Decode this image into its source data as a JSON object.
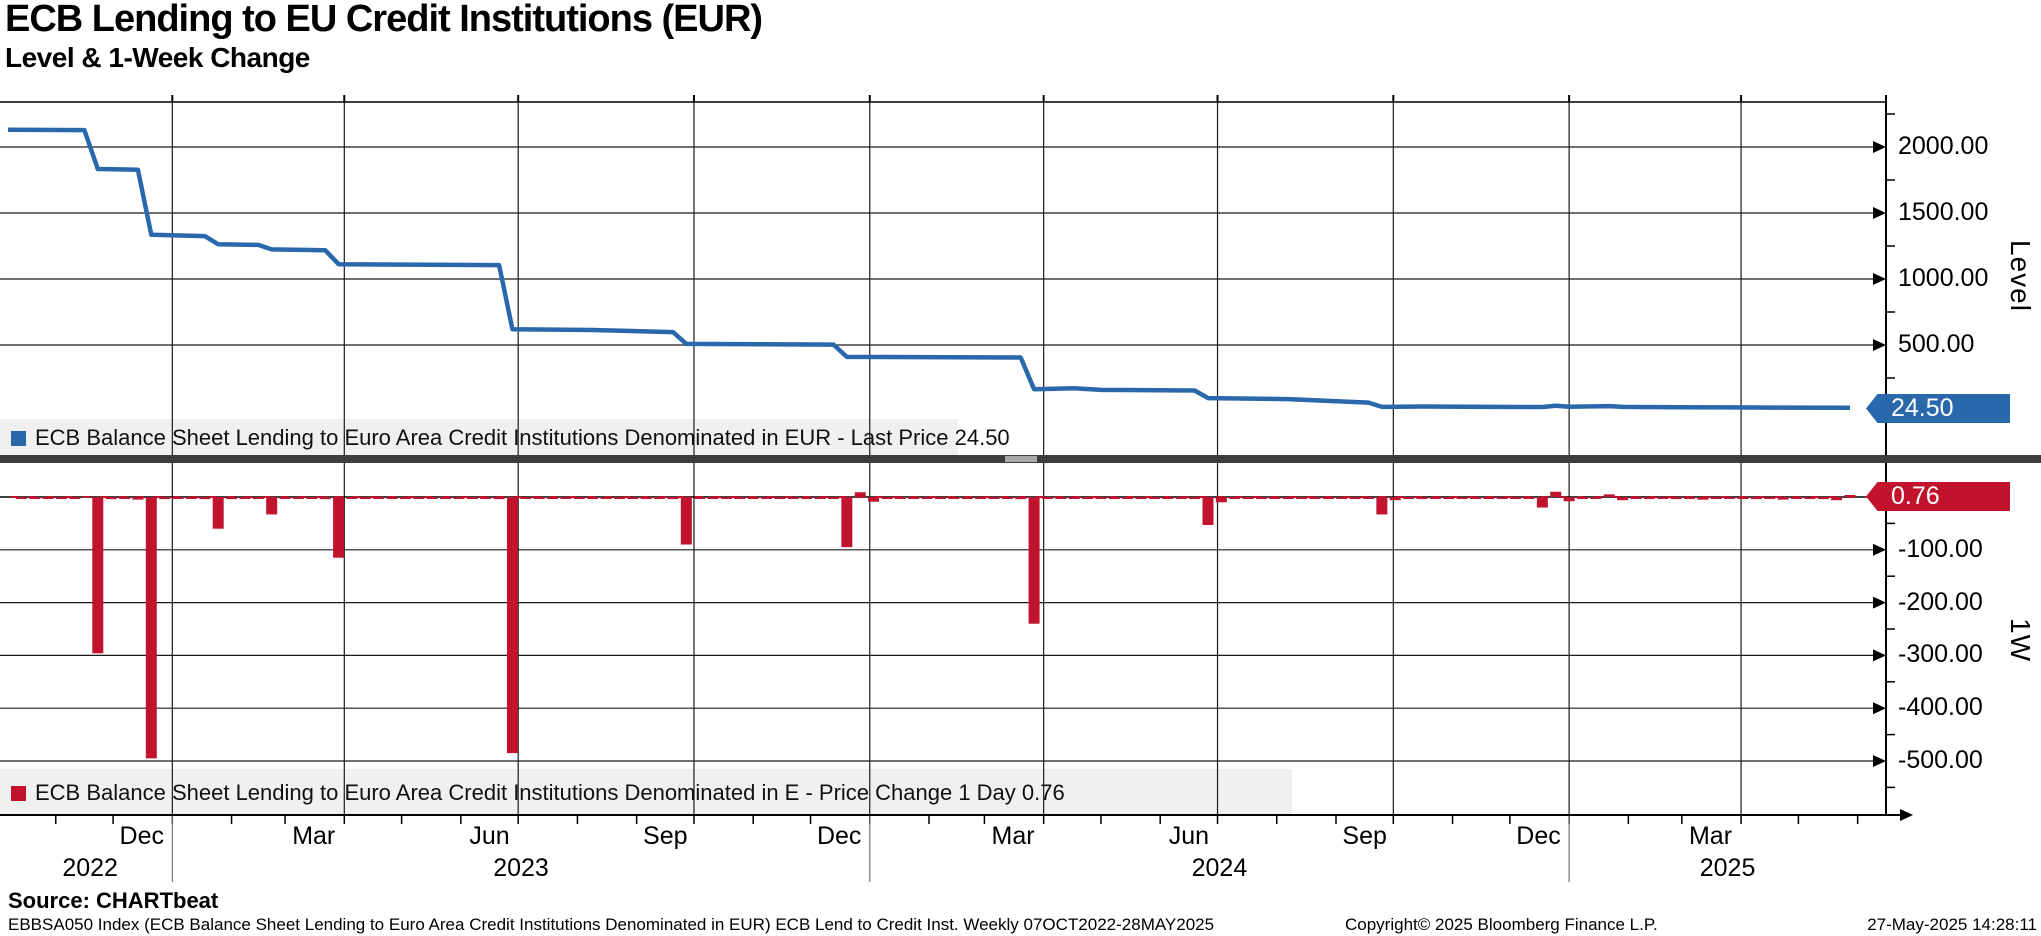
{
  "title": "ECB Lending to EU Credit Institutions (EUR)",
  "subtitle": "Level & 1-Week Change",
  "panels": {
    "level": {
      "axis_label": "Level",
      "legend": "ECB Balance Sheet Lending to Euro Area Credit Institutions Denominated in EUR - Last Price 24.50",
      "last_price_label": "24.50",
      "ticks": [
        "2000.00",
        "1500.00",
        "1000.00",
        "500.00"
      ],
      "color": "#2a68ac"
    },
    "change": {
      "axis_label": "1W",
      "legend": "ECB Balance Sheet Lending to Euro Area Credit Institutions Denominated in E - Price Change 1 Day 0.76",
      "last_value_label": "0.76",
      "ticks": [
        "-100.00",
        "-200.00",
        "-300.00",
        "-400.00",
        "-500.00"
      ],
      "color": "#c1132d"
    }
  },
  "x_axis": {
    "month_labels": [
      {
        "label": "Dec",
        "center": "2022-12-16"
      },
      {
        "label": "Mar",
        "center": "2023-03-16"
      },
      {
        "label": "Jun",
        "center": "2023-06-16"
      },
      {
        "label": "Sep",
        "center": "2023-09-16"
      },
      {
        "label": "Dec",
        "center": "2023-12-16"
      },
      {
        "label": "Mar",
        "center": "2024-03-16"
      },
      {
        "label": "Jun",
        "center": "2024-06-16"
      },
      {
        "label": "Sep",
        "center": "2024-09-16"
      },
      {
        "label": "Dec",
        "center": "2024-12-16"
      },
      {
        "label": "Mar",
        "center": "2025-03-16"
      }
    ],
    "year_labels": [
      {
        "label": "2022",
        "from": "2022-10-07",
        "to": "2023-01-01"
      },
      {
        "label": "2023",
        "from": "2023-01-01",
        "to": "2024-01-01"
      },
      {
        "label": "2024",
        "from": "2024-01-01",
        "to": "2025-01-01"
      },
      {
        "label": "2025",
        "from": "2025-01-01",
        "to": "2025-07-01"
      }
    ],
    "year_separators": [
      "2023-01-01",
      "2024-01-01",
      "2025-01-01"
    ]
  },
  "footer": {
    "source": "Source: CHARTbeat",
    "info": "EBBSA050 Index (ECB Balance Sheet Lending to Euro Area Credit Institutions Denominated in EUR) ECB Lend to Credit Inst.  Weekly 07OCT2022-28MAY2025",
    "copyright": "Copyright© 2025 Bloomberg Finance L.P.",
    "timestamp": "27-May-2025 14:28:11"
  },
  "chart_data": [
    {
      "type": "line",
      "name": "ECB Balance Sheet Lending to Euro Area Credit Institutions Denominated in EUR",
      "title": "Level",
      "legend_position": "bottom-left",
      "grid": true,
      "last_price": 24.5,
      "yticks": [
        2000,
        1500,
        1000,
        500
      ],
      "ylim": [
        -330,
        2340
      ],
      "x_range": [
        "2022-10-07",
        "2025-05-28"
      ],
      "points": [
        [
          "2022-10-07",
          2130
        ],
        [
          "2022-11-16",
          2128
        ],
        [
          "2022-11-23",
          1833
        ],
        [
          "2022-12-14",
          1828
        ],
        [
          "2022-12-21",
          1335
        ],
        [
          "2023-01-18",
          1325
        ],
        [
          "2023-01-25",
          1263
        ],
        [
          "2023-02-15",
          1258
        ],
        [
          "2023-02-22",
          1224
        ],
        [
          "2023-03-22",
          1218
        ],
        [
          "2023-03-29",
          1112
        ],
        [
          "2023-06-21",
          1105
        ],
        [
          "2023-06-28",
          620
        ],
        [
          "2023-08-09",
          614
        ],
        [
          "2023-09-20",
          598
        ],
        [
          "2023-09-27",
          508
        ],
        [
          "2023-12-13",
          503
        ],
        [
          "2023-12-20",
          410
        ],
        [
          "2024-03-20",
          405
        ],
        [
          "2024-03-27",
          165
        ],
        [
          "2024-04-17",
          172
        ],
        [
          "2024-05-01",
          160
        ],
        [
          "2024-06-19",
          155
        ],
        [
          "2024-06-26",
          98
        ],
        [
          "2024-08-07",
          90
        ],
        [
          "2024-09-18",
          64
        ],
        [
          "2024-09-25",
          31
        ],
        [
          "2024-10-16",
          34
        ],
        [
          "2024-11-20",
          31
        ],
        [
          "2024-12-18",
          30
        ],
        [
          "2024-12-25",
          40
        ],
        [
          "2025-01-01",
          32
        ],
        [
          "2025-01-22",
          37
        ],
        [
          "2025-01-29",
          31
        ],
        [
          "2025-02-26",
          29
        ],
        [
          "2025-03-26",
          27
        ],
        [
          "2025-04-23",
          26
        ],
        [
          "2025-05-28",
          24.5
        ]
      ]
    },
    {
      "type": "bar",
      "name": "ECB Balance Sheet Lending to Euro Area Credit Institutions Denominated in E - Price Change 1 Day",
      "title": "1W",
      "legend_position": "bottom-left",
      "grid": true,
      "last_value": 0.76,
      "yticks": [
        -100,
        -200,
        -300,
        -400,
        -500
      ],
      "ylim": [
        -600,
        70
      ],
      "x_range": [
        "2022-10-07",
        "2025-05-28"
      ],
      "points": [
        [
          "2022-10-14",
          -2
        ],
        [
          "2022-10-21",
          -3
        ],
        [
          "2022-10-28",
          -2
        ],
        [
          "2022-11-04",
          -3
        ],
        [
          "2022-11-11",
          -2
        ],
        [
          "2022-11-23",
          -296
        ],
        [
          "2022-11-30",
          -4
        ],
        [
          "2022-12-07",
          -3
        ],
        [
          "2022-12-14",
          -5
        ],
        [
          "2022-12-21",
          -495
        ],
        [
          "2022-12-28",
          -4
        ],
        [
          "2023-01-04",
          -3
        ],
        [
          "2023-01-11",
          -3
        ],
        [
          "2023-01-18",
          -4
        ],
        [
          "2023-01-25",
          -60
        ],
        [
          "2023-02-01",
          -4
        ],
        [
          "2023-02-08",
          -3
        ],
        [
          "2023-02-15",
          -3
        ],
        [
          "2023-02-22",
          -33
        ],
        [
          "2023-03-01",
          -3
        ],
        [
          "2023-03-08",
          -3
        ],
        [
          "2023-03-15",
          -3
        ],
        [
          "2023-03-22",
          -4
        ],
        [
          "2023-03-29",
          -115
        ],
        [
          "2023-04-05",
          -3
        ],
        [
          "2023-04-12",
          -2
        ],
        [
          "2023-04-19",
          -3
        ],
        [
          "2023-04-26",
          -3
        ],
        [
          "2023-05-03",
          -3
        ],
        [
          "2023-05-10",
          -2
        ],
        [
          "2023-05-17",
          -3
        ],
        [
          "2023-05-24",
          -3
        ],
        [
          "2023-05-31",
          -3
        ],
        [
          "2023-06-07",
          -3
        ],
        [
          "2023-06-14",
          -3
        ],
        [
          "2023-06-21",
          -4
        ],
        [
          "2023-06-28",
          -485
        ],
        [
          "2023-07-05",
          -3
        ],
        [
          "2023-07-12",
          -2
        ],
        [
          "2023-07-19",
          -3
        ],
        [
          "2023-07-26",
          -3
        ],
        [
          "2023-08-02",
          -3
        ],
        [
          "2023-08-09",
          -2
        ],
        [
          "2023-08-16",
          -3
        ],
        [
          "2023-08-23",
          -2
        ],
        [
          "2023-08-30",
          -3
        ],
        [
          "2023-09-06",
          -3
        ],
        [
          "2023-09-13",
          -3
        ],
        [
          "2023-09-20",
          -4
        ],
        [
          "2023-09-27",
          -90
        ],
        [
          "2023-10-04",
          -3
        ],
        [
          "2023-10-11",
          -2
        ],
        [
          "2023-10-18",
          -3
        ],
        [
          "2023-10-25",
          -2
        ],
        [
          "2023-11-01",
          -3
        ],
        [
          "2023-11-08",
          -2
        ],
        [
          "2023-11-15",
          -3
        ],
        [
          "2023-11-22",
          -3
        ],
        [
          "2023-11-29",
          -2
        ],
        [
          "2023-12-06",
          -3
        ],
        [
          "2023-12-13",
          -3
        ],
        [
          "2023-12-20",
          -95
        ],
        [
          "2023-12-27",
          9
        ],
        [
          "2024-01-03",
          -9
        ],
        [
          "2024-01-10",
          -3
        ],
        [
          "2024-01-17",
          -2
        ],
        [
          "2024-01-24",
          -3
        ],
        [
          "2024-01-31",
          -2
        ],
        [
          "2024-02-07",
          -3
        ],
        [
          "2024-02-14",
          -2
        ],
        [
          "2024-02-21",
          -3
        ],
        [
          "2024-02-28",
          -2
        ],
        [
          "2024-03-06",
          -3
        ],
        [
          "2024-03-13",
          -3
        ],
        [
          "2024-03-20",
          -4
        ],
        [
          "2024-03-27",
          -240
        ],
        [
          "2024-04-03",
          -3
        ],
        [
          "2024-04-10",
          -2
        ],
        [
          "2024-04-17",
          -3
        ],
        [
          "2024-04-24",
          -2
        ],
        [
          "2024-05-01",
          -3
        ],
        [
          "2024-05-08",
          -2
        ],
        [
          "2024-05-15",
          -3
        ],
        [
          "2024-05-22",
          -2
        ],
        [
          "2024-05-29",
          -3
        ],
        [
          "2024-06-05",
          -2
        ],
        [
          "2024-06-12",
          -3
        ],
        [
          "2024-06-19",
          -3
        ],
        [
          "2024-06-26",
          -53
        ],
        [
          "2024-07-03",
          -10
        ],
        [
          "2024-07-10",
          -3
        ],
        [
          "2024-07-17",
          -2
        ],
        [
          "2024-07-24",
          -3
        ],
        [
          "2024-07-31",
          -2
        ],
        [
          "2024-08-07",
          -3
        ],
        [
          "2024-08-14",
          -2
        ],
        [
          "2024-08-21",
          -3
        ],
        [
          "2024-08-28",
          -2
        ],
        [
          "2024-09-04",
          -3
        ],
        [
          "2024-09-11",
          -2
        ],
        [
          "2024-09-18",
          -3
        ],
        [
          "2024-09-25",
          -33
        ],
        [
          "2024-10-02",
          -6
        ],
        [
          "2024-10-09",
          -3
        ],
        [
          "2024-10-16",
          -2
        ],
        [
          "2024-10-23",
          -3
        ],
        [
          "2024-10-30",
          -2
        ],
        [
          "2024-11-06",
          -3
        ],
        [
          "2024-11-13",
          -2
        ],
        [
          "2024-11-20",
          -3
        ],
        [
          "2024-11-27",
          -3
        ],
        [
          "2024-12-04",
          -2
        ],
        [
          "2024-12-11",
          -3
        ],
        [
          "2024-12-18",
          -20
        ],
        [
          "2024-12-25",
          10
        ],
        [
          "2025-01-01",
          -8
        ],
        [
          "2025-01-08",
          -3
        ],
        [
          "2025-01-15",
          -2
        ],
        [
          "2025-01-22",
          5
        ],
        [
          "2025-01-29",
          -6
        ],
        [
          "2025-02-05",
          -3
        ],
        [
          "2025-02-12",
          -2
        ],
        [
          "2025-02-19",
          -3
        ],
        [
          "2025-02-26",
          -4
        ],
        [
          "2025-03-05",
          -3
        ],
        [
          "2025-03-12",
          -5
        ],
        [
          "2025-03-19",
          -2
        ],
        [
          "2025-03-26",
          -3
        ],
        [
          "2025-04-02",
          -3
        ],
        [
          "2025-04-09",
          -4
        ],
        [
          "2025-04-16",
          -2
        ],
        [
          "2025-04-23",
          -5
        ],
        [
          "2025-04-30",
          -3
        ],
        [
          "2025-05-07",
          -2
        ],
        [
          "2025-05-14",
          -4
        ],
        [
          "2025-05-21",
          -6
        ],
        [
          "2025-05-28",
          0.76
        ]
      ]
    }
  ]
}
